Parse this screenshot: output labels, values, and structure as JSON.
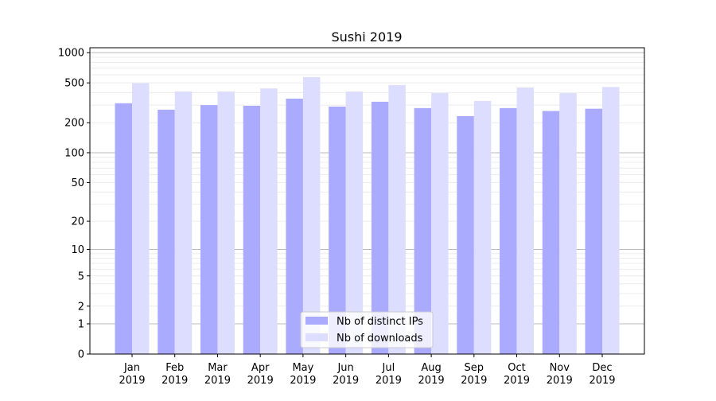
{
  "chart_data": {
    "type": "bar",
    "title": "Sushi 2019",
    "xlabel": "",
    "ylabel": "",
    "yscale": "log(1+x)",
    "ylim": [
      0,
      1120
    ],
    "yticks": [
      0,
      1,
      2,
      5,
      10,
      20,
      50,
      100,
      200,
      500,
      1000
    ],
    "ytick_labels": [
      "0",
      "1",
      "2",
      "5",
      "10",
      "20",
      "50",
      "100",
      "200",
      "500",
      "1000"
    ],
    "categories": [
      "Jan\n2019",
      "Feb\n2019",
      "Mar\n2019",
      "Apr\n2019",
      "May\n2019",
      "Jun\n2019",
      "Jul\n2019",
      "Aug\n2019",
      "Sep\n2019",
      "Oct\n2019",
      "Nov\n2019",
      "Dec\n2019"
    ],
    "series": [
      {
        "name": "Nb of distinct IPs",
        "color": "#aaaaff",
        "values": [
          313,
          270,
          300,
          295,
          348,
          290,
          324,
          280,
          233,
          280,
          262,
          276
        ]
      },
      {
        "name": "Nb of downloads",
        "color": "#ddddff",
        "values": [
          495,
          410,
          410,
          440,
          571,
          410,
          476,
          395,
          330,
          450,
          395,
          455
        ]
      }
    ],
    "grid": true,
    "legend_position": "lower-center"
  }
}
